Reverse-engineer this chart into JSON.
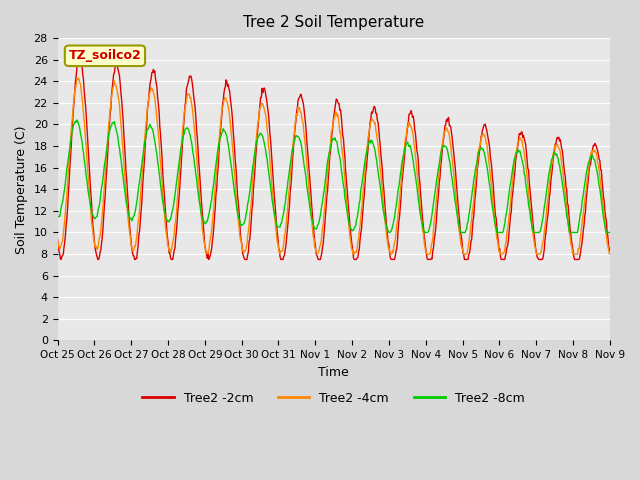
{
  "title": "Tree 2 Soil Temperature",
  "xlabel": "Time",
  "ylabel": "Soil Temperature (C)",
  "annotation": "TZ_soilco2",
  "annotation_color": "#cc0000",
  "annotation_bg": "#ffffcc",
  "annotation_border": "#999900",
  "ylim": [
    0,
    28
  ],
  "yticks": [
    0,
    2,
    4,
    6,
    8,
    10,
    12,
    14,
    16,
    18,
    20,
    22,
    24,
    26,
    28
  ],
  "xtick_labels": [
    "Oct 25",
    "Oct 26",
    "Oct 27",
    "Oct 28",
    "Oct 29",
    "Oct 30",
    "Oct 31",
    "Nov 1",
    "Nov 2",
    "Nov 3",
    "Nov 4",
    "Nov 5",
    "Nov 6",
    "Nov 7",
    "Nov 8",
    "Nov 9"
  ],
  "colors": {
    "2cm": "#dd0000",
    "4cm": "#ff8800",
    "8cm": "#00cc00"
  },
  "legend_labels": [
    "Tree2 -2cm",
    "Tree2 -4cm",
    "Tree2 -8cm"
  ],
  "fig_bg": "#d8d8d8",
  "plot_bg": "#e8e8e8",
  "grid_color": "#ffffff",
  "num_days": 16,
  "points_per_day": 48
}
